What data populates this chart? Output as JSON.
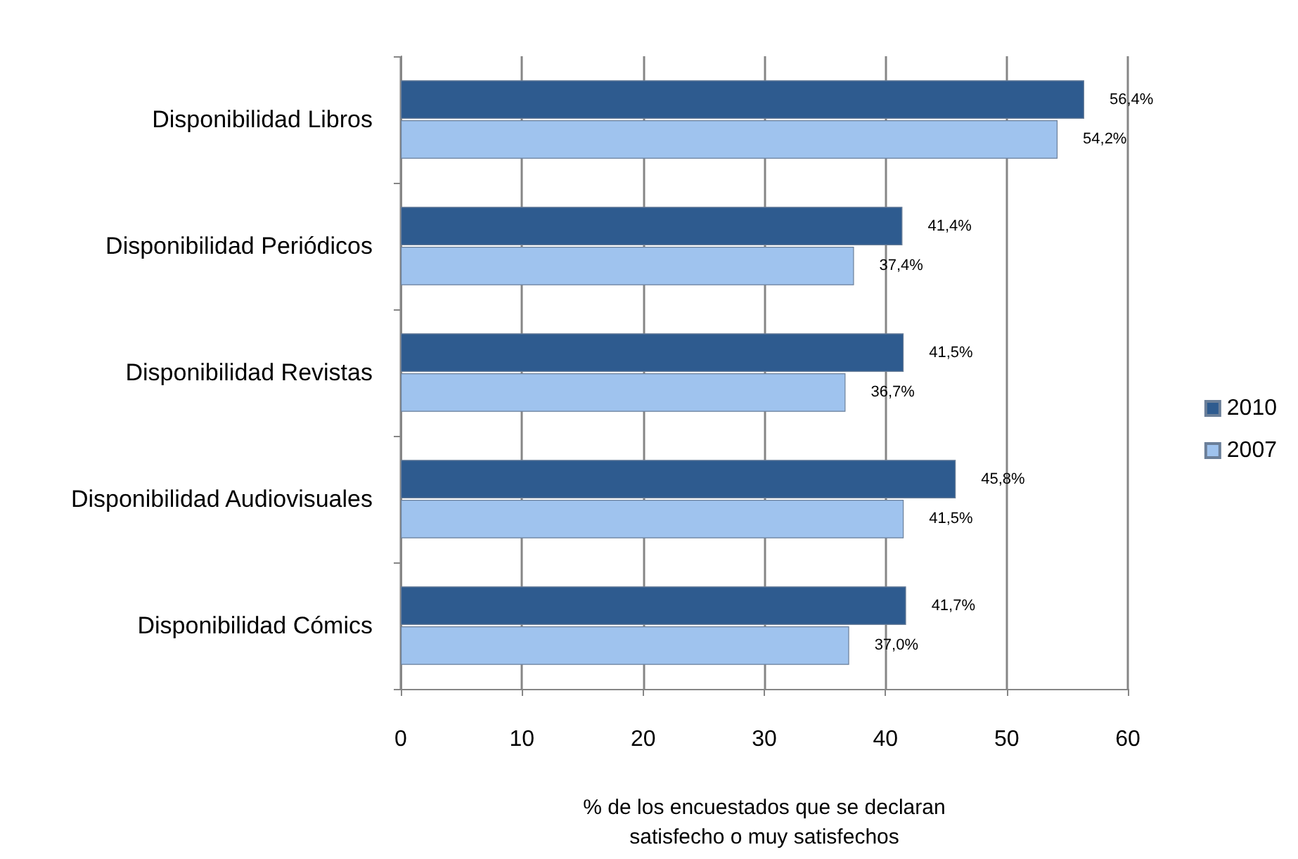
{
  "chart_data": {
    "type": "bar",
    "orientation": "horizontal",
    "categories": [
      "Disponibilidad Libros",
      "Disponibilidad Periódicos",
      "Disponibilidad Revistas",
      "Disponibilidad Audiovisuales",
      "Disponibilidad Cómics"
    ],
    "series": [
      {
        "name": "2010",
        "color": "#2e5b8f",
        "values": [
          56.4,
          41.4,
          41.5,
          45.8,
          41.7
        ],
        "value_labels": [
          "56,4%",
          "41,4%",
          "41,5%",
          "45,8%",
          "41,7%"
        ]
      },
      {
        "name": "2007",
        "color": "#9fc3ee",
        "values": [
          54.2,
          37.4,
          36.7,
          41.5,
          37.0
        ],
        "value_labels": [
          "54,2%",
          "37,4%",
          "36,7%",
          "41,5%",
          "37,0%"
        ]
      }
    ],
    "xlabel": "% de los encuestados que se declaran satisfecho o muy satisfechos",
    "xlim": [
      0,
      60
    ],
    "xticks": [
      0,
      10,
      20,
      30,
      40,
      50,
      60
    ],
    "grid": "x",
    "legend": "right"
  }
}
